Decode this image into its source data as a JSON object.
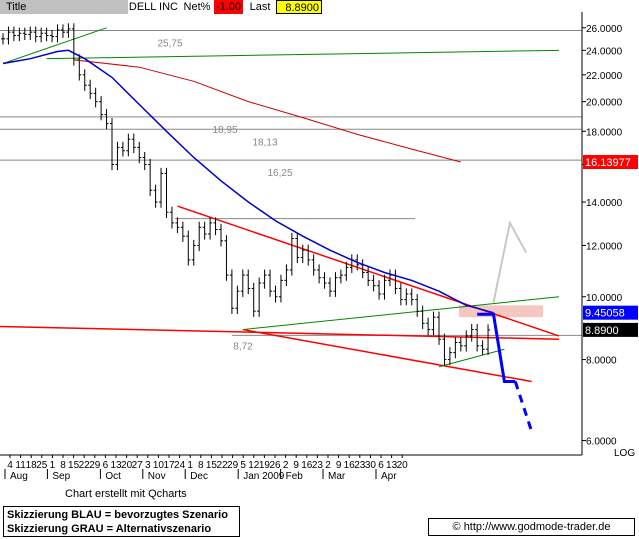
{
  "header": {
    "title_label": "Title",
    "symbol": "DELL INC",
    "net_label": "Net%",
    "net_value": "-1.00",
    "last_label": "Last",
    "last_value": "8.8900"
  },
  "footer": {
    "credit": "Chart erstellt mit Qcharts",
    "legend_blue": "Skizzierung BLAU = bevorzugtes Szenario",
    "legend_gray": "Skizzierung GRAU = Alternativszenario",
    "url": "© http://www.godmode-trader.de"
  },
  "chart_data": {
    "type": "candlestick",
    "symbol": "DELL INC",
    "scale": "log",
    "scale_label": "LOG",
    "ylim": [
      5.7,
      27.5
    ],
    "y_ticks": [
      "26.0000",
      "24.0000",
      "22.0000",
      "20.0000",
      "18.0000",
      "16.0000",
      "14.0000",
      "12.0000",
      "10.0000",
      "8.0000",
      "6.0000"
    ],
    "x_day_ticks": [
      "4",
      "11",
      "18",
      "25",
      "1",
      "8",
      "15",
      "22",
      "29",
      "6",
      "13",
      "20",
      "27",
      "3",
      "10",
      "17",
      "24",
      "1",
      "8",
      "15",
      "22",
      "29",
      "5",
      "12",
      "19",
      "26",
      "2",
      "9",
      "16",
      "23",
      "2",
      "9",
      "16",
      "23",
      "30",
      "6",
      "13",
      "20"
    ],
    "x_month_labels": [
      "Aug",
      "Sep",
      "Oct",
      "Nov",
      "Dec",
      "Jan 2009",
      "Feb",
      "Mar",
      "Apr"
    ],
    "x_month_positions": [
      0,
      4,
      9,
      13,
      17,
      22,
      26,
      30,
      35
    ],
    "horizontal_levels": [
      {
        "value": 25.75,
        "label": "25,75"
      },
      {
        "value": 18.95,
        "label": "18,95"
      },
      {
        "value": 18.13,
        "label": "18,13"
      },
      {
        "value": 16.25,
        "label": "16,25"
      },
      {
        "value": 8.72,
        "label": "8,72"
      }
    ],
    "price_flags": [
      {
        "value": "16.13977",
        "color": "#ff0000"
      },
      {
        "value": "9.45058",
        "color": "#0000ff"
      },
      {
        "value": "8.8900",
        "color": "#000000"
      }
    ],
    "close_series": [
      [
        0,
        25.0
      ],
      [
        1,
        25.6
      ],
      [
        2,
        25.3
      ],
      [
        3,
        25.5
      ],
      [
        4,
        25.4
      ],
      [
        5,
        25.6
      ],
      [
        6,
        25.2
      ],
      [
        7,
        25.5
      ],
      [
        8,
        25.3
      ],
      [
        9,
        25.2
      ],
      [
        10,
        25.8
      ],
      [
        11,
        25.6
      ],
      [
        12,
        25.9
      ],
      [
        13,
        23.2
      ],
      [
        14,
        22.0
      ],
      [
        15,
        21.2
      ],
      [
        16,
        20.6
      ],
      [
        17,
        20.0
      ],
      [
        18,
        19.1
      ],
      [
        19,
        18.5
      ],
      [
        20,
        16.0
      ],
      [
        21,
        17.0
      ],
      [
        22,
        16.8
      ],
      [
        23,
        17.5
      ],
      [
        24,
        17.0
      ],
      [
        25,
        16.4
      ],
      [
        26,
        16.0
      ],
      [
        27,
        14.6
      ],
      [
        28,
        14.0
      ],
      [
        29,
        15.5
      ],
      [
        30,
        13.5
      ],
      [
        31,
        13.0
      ],
      [
        32,
        12.8
      ],
      [
        33,
        12.4
      ],
      [
        34,
        11.4
      ],
      [
        35,
        12.0
      ],
      [
        36,
        12.8
      ],
      [
        37,
        12.5
      ],
      [
        38,
        13.0
      ],
      [
        39,
        12.7
      ],
      [
        40,
        12.2
      ],
      [
        41,
        10.8
      ],
      [
        42,
        9.6
      ],
      [
        43,
        10.2
      ],
      [
        44,
        10.8
      ],
      [
        45,
        10.3
      ],
      [
        46,
        9.5
      ],
      [
        47,
        10.5
      ],
      [
        48,
        10.8
      ],
      [
        49,
        10.2
      ],
      [
        50,
        10.0
      ],
      [
        51,
        10.6
      ],
      [
        52,
        11.0
      ],
      [
        53,
        12.3
      ],
      [
        54,
        11.5
      ],
      [
        55,
        11.8
      ],
      [
        56,
        11.4
      ],
      [
        57,
        11.0
      ],
      [
        58,
        10.7
      ],
      [
        59,
        10.5
      ],
      [
        60,
        10.2
      ],
      [
        61,
        10.7
      ],
      [
        62,
        10.8
      ],
      [
        63,
        11.1
      ],
      [
        64,
        11.4
      ],
      [
        65,
        11.2
      ],
      [
        66,
        10.9
      ],
      [
        67,
        10.6
      ],
      [
        68,
        10.4
      ],
      [
        69,
        10.1
      ],
      [
        70,
        10.6
      ],
      [
        71,
        10.8
      ],
      [
        72,
        10.3
      ],
      [
        73,
        9.9
      ],
      [
        74,
        10.1
      ],
      [
        75,
        9.9
      ],
      [
        76,
        9.5
      ],
      [
        77,
        9.1
      ],
      [
        78,
        8.9
      ],
      [
        79,
        9.3
      ],
      [
        80,
        8.6
      ],
      [
        81,
        8.0
      ],
      [
        82,
        8.2
      ],
      [
        83,
        8.5
      ],
      [
        84,
        8.4
      ],
      [
        85,
        8.7
      ],
      [
        86,
        8.9
      ],
      [
        87,
        8.4
      ],
      [
        88,
        8.3
      ],
      [
        89,
        8.89
      ]
    ],
    "blue_ma_series": [
      [
        0,
        22.9
      ],
      [
        5,
        23.3
      ],
      [
        10,
        23.9
      ],
      [
        12,
        24.0
      ],
      [
        15,
        23.3
      ],
      [
        20,
        21.8
      ],
      [
        25,
        19.8
      ],
      [
        30,
        18.0
      ],
      [
        35,
        16.4
      ],
      [
        40,
        15.1
      ],
      [
        45,
        14.0
      ],
      [
        50,
        13.1
      ],
      [
        55,
        12.4
      ],
      [
        60,
        11.8
      ],
      [
        65,
        11.3
      ],
      [
        70,
        10.9
      ],
      [
        75,
        10.6
      ],
      [
        80,
        10.2
      ],
      [
        85,
        9.7
      ],
      [
        90,
        9.45
      ]
    ],
    "red_ma_series": [
      [
        13,
        23.2
      ],
      [
        25,
        22.6
      ],
      [
        35,
        21.5
      ],
      [
        45,
        20.0
      ],
      [
        55,
        18.9
      ],
      [
        65,
        17.8
      ],
      [
        75,
        16.9
      ],
      [
        84,
        16.14
      ]
    ],
    "trendlines": [
      {
        "color": "#008800",
        "points": [
          [
            0,
            22.9
          ],
          [
            19,
            26.0
          ]
        ]
      },
      {
        "color": "#008800",
        "points": [
          [
            8,
            23.3
          ],
          [
            102,
            24.0
          ]
        ]
      },
      {
        "color": "#ff0000",
        "points": [
          [
            32,
            13.8
          ],
          [
            102,
            8.7
          ]
        ]
      },
      {
        "color": "#ff0000",
        "points": [
          [
            -1,
            9.0
          ],
          [
            102,
            8.6
          ]
        ]
      },
      {
        "color": "#ff0000",
        "points": [
          [
            44,
            8.9
          ],
          [
            97,
            7.4
          ]
        ]
      },
      {
        "color": "#008800",
        "points": [
          [
            44,
            8.9
          ],
          [
            102,
            10.0
          ]
        ]
      },
      {
        "color": "#008800",
        "points": [
          [
            80,
            7.8
          ],
          [
            92,
            8.3
          ]
        ]
      }
    ],
    "scenario_blue": [
      [
        87,
        9.4
      ],
      [
        90,
        9.4
      ],
      [
        92,
        7.4
      ],
      [
        94,
        7.4
      ],
      [
        97,
        6.2
      ]
    ],
    "scenario_gray": [
      [
        90,
        9.8
      ],
      [
        93,
        13.0
      ],
      [
        96,
        11.7
      ]
    ],
    "series_colors": {
      "price": "#000000",
      "blue_ma": "#0000cc",
      "red_ma": "#cc0000",
      "trendline_red": "#ff0000",
      "trendline_green": "#008800",
      "scenario_blue": "#0000ff",
      "scenario_gray": "#c8c8c8",
      "resistance_zone": "#f4c8c0"
    }
  }
}
